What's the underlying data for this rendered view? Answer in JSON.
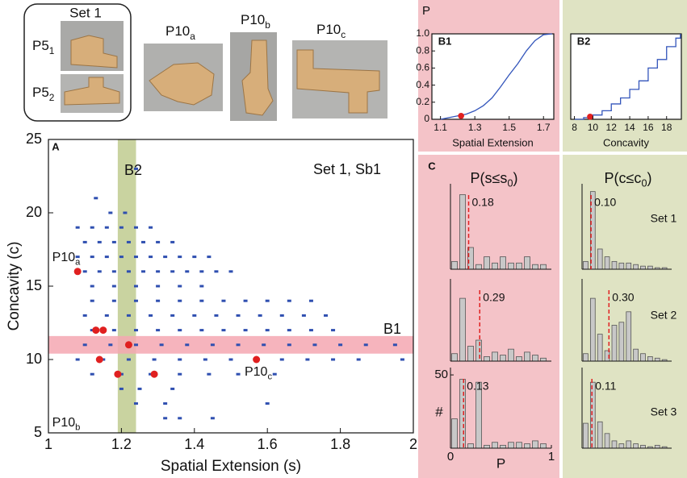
{
  "photos": {
    "group_title": "Set 1",
    "labels": [
      {
        "text": "P5",
        "sub": "1"
      },
      {
        "text": "P5",
        "sub": "2"
      },
      {
        "text": "P10",
        "sub": "a"
      },
      {
        "text": "P10",
        "sub": "b"
      },
      {
        "text": "P10",
        "sub": "c"
      }
    ]
  },
  "panel_c": {
    "label": "C",
    "columns": [
      {
        "text": "P(s≤s",
        "sub": "0",
        "tail": ")"
      },
      {
        "text": "P(c≤c",
        "sub": "0",
        "tail": ")"
      }
    ],
    "set_labels": [
      "Set 1",
      "Set 2",
      "Set 3"
    ]
  },
  "chart_data": [
    {
      "type": "scatter",
      "panel": "A",
      "title": "Set 1, Sb1",
      "xlabel": "Spatial Extension (s)",
      "ylabel": "Concavity (c)",
      "xlim": [
        1,
        2
      ],
      "ylim": [
        5,
        25
      ],
      "xticks": [
        1,
        1.2,
        1.4,
        1.6,
        1.8,
        2
      ],
      "yticks": [
        5,
        10,
        15,
        20,
        25
      ],
      "color": "#2f4fb0",
      "highlight_color": "#e02020",
      "band_y": [
        10.4,
        11.6
      ],
      "band_y_label": "B1",
      "band_y_color": "#f4a7b2",
      "band_x": [
        1.19,
        1.24
      ],
      "band_x_label": "B2",
      "band_x_color": "#c9d3a0",
      "x": [
        1.24,
        1.13,
        1.17,
        1.21,
        1.08,
        1.12,
        1.16,
        1.2,
        1.24,
        1.28,
        1.1,
        1.14,
        1.18,
        1.22,
        1.26,
        1.3,
        1.34,
        1.08,
        1.12,
        1.16,
        1.2,
        1.24,
        1.28,
        1.32,
        1.36,
        1.4,
        1.44,
        1.1,
        1.14,
        1.18,
        1.22,
        1.26,
        1.3,
        1.34,
        1.38,
        1.42,
        1.46,
        1.5,
        1.12,
        1.18,
        1.24,
        1.3,
        1.36,
        1.42,
        1.12,
        1.18,
        1.24,
        1.3,
        1.36,
        1.42,
        1.48,
        1.54,
        1.6,
        1.66,
        1.72,
        1.1,
        1.16,
        1.22,
        1.28,
        1.34,
        1.4,
        1.46,
        1.52,
        1.58,
        1.64,
        1.7,
        1.76,
        1.12,
        1.18,
        1.24,
        1.3,
        1.36,
        1.42,
        1.48,
        1.54,
        1.6,
        1.66,
        1.72,
        1.78,
        1.1,
        1.17,
        1.24,
        1.31,
        1.38,
        1.45,
        1.52,
        1.59,
        1.66,
        1.73,
        1.8,
        1.87,
        1.95,
        1.08,
        1.15,
        1.22,
        1.29,
        1.36,
        1.43,
        1.5,
        1.57,
        1.64,
        1.71,
        1.78,
        1.85,
        1.97,
        1.12,
        1.2,
        1.28,
        1.36,
        1.44,
        1.52,
        1.62,
        1.2,
        1.25,
        1.34,
        1.24,
        1.32,
        1.6,
        1.32,
        1.36,
        1.45
      ],
      "values": [
        23,
        21,
        20,
        20,
        19,
        19,
        19,
        19,
        19,
        19,
        18,
        18,
        18,
        18,
        18,
        18,
        18,
        17,
        17,
        17,
        17,
        17,
        17,
        17,
        17,
        17,
        17,
        16,
        16,
        16,
        16,
        16,
        16,
        16,
        16,
        16,
        16,
        16,
        15,
        15,
        15,
        15,
        15,
        15,
        14,
        14,
        14,
        14,
        14,
        14,
        14,
        14,
        14,
        14,
        14,
        13,
        13,
        13,
        13,
        13,
        13,
        13,
        13,
        13,
        13,
        13,
        13,
        12,
        12,
        12,
        12,
        12,
        12,
        12,
        12,
        12,
        12,
        12,
        12,
        11,
        11,
        11,
        11,
        11,
        11,
        11,
        11,
        11,
        11,
        11,
        11,
        11,
        10,
        10,
        10,
        10,
        10,
        10,
        10,
        10,
        10,
        10,
        10,
        10,
        10,
        9,
        9,
        9,
        9,
        9,
        9,
        9,
        8,
        8,
        8,
        7,
        7,
        7,
        6,
        6,
        6
      ],
      "highlight_x": [
        1.08,
        1.13,
        1.15,
        1.14,
        1.22,
        1.19,
        1.29,
        1.57
      ],
      "highlight_values": [
        16,
        12,
        12,
        10,
        11,
        9,
        9,
        10
      ],
      "annotations": [
        {
          "text": "P10",
          "sub": "a"
        },
        {
          "text": "P10",
          "sub": "b"
        },
        {
          "text": "P10",
          "sub": "c"
        }
      ]
    },
    {
      "type": "line",
      "panel": "B1",
      "ylabel": "P",
      "xlabel": "Spatial Extension",
      "step": false,
      "color": "#3355bb",
      "xlim": [
        1.05,
        1.76
      ],
      "ylim": [
        0,
        1
      ],
      "xticks": [
        1.1,
        1.3,
        1.5,
        1.7
      ],
      "yticks": [
        0,
        0.2,
        0.4,
        0.6,
        0.8,
        {
          "value": 1,
          "label": "1.0"
        }
      ],
      "x": [
        1.1,
        1.15,
        1.2,
        1.25,
        1.3,
        1.35,
        1.4,
        1.45,
        1.5,
        1.55,
        1.6,
        1.65,
        1.7,
        1.75
      ],
      "values": [
        0,
        0.02,
        0.04,
        0.06,
        0.1,
        0.16,
        0.25,
        0.38,
        0.52,
        0.65,
        0.8,
        0.92,
        0.99,
        1
      ],
      "marker_color": "#e02020",
      "marker_x": 1.22,
      "marker_y": 0.04
    },
    {
      "type": "line",
      "panel": "B2",
      "xlabel": "Concavity",
      "step": true,
      "color": "#3355bb",
      "xlim": [
        7.6,
        19.6
      ],
      "ylim": [
        0,
        1
      ],
      "xticks": [
        8,
        10,
        12,
        14,
        16,
        18
      ],
      "x": [
        8,
        9,
        10,
        11,
        12,
        13,
        14,
        15,
        16,
        17,
        18,
        19,
        19.5
      ],
      "values": [
        0,
        0.02,
        0.05,
        0.1,
        0.18,
        0.25,
        0.35,
        0.45,
        0.6,
        0.7,
        0.85,
        0.95,
        1
      ],
      "marker_color": "#e02020",
      "marker_x": 9.7,
      "marker_y": 0.03
    },
    {
      "type": "histogram",
      "color": "#c8c8c8",
      "threshold": 0.18,
      "threshold_color": "#e02020",
      "xlim": [
        0,
        1
      ],
      "ylim": [
        0,
        55
      ],
      "bins": [
        0,
        0.08,
        0.16,
        0.24,
        0.32,
        0.4,
        0.48,
        0.56,
        0.64,
        0.72,
        0.8,
        0.88,
        0.96
      ],
      "values": [
        5,
        48,
        14,
        3,
        8,
        4,
        8,
        4,
        4,
        8,
        3,
        3
      ]
    },
    {
      "type": "histogram",
      "color": "#c8c8c8",
      "threshold": 0.29,
      "threshold_color": "#e02020",
      "xlim": [
        0,
        1
      ],
      "ylim": [
        0,
        55
      ],
      "bins": [
        0,
        0.08,
        0.16,
        0.24,
        0.32,
        0.4,
        0.48,
        0.56,
        0.64,
        0.72,
        0.8,
        0.88,
        0.96
      ],
      "values": [
        5,
        42,
        10,
        14,
        3,
        6,
        4,
        8,
        3,
        6,
        4,
        2
      ]
    },
    {
      "type": "histogram",
      "color": "#c8c8c8",
      "threshold": 0.13,
      "threshold_color": "#e02020",
      "xlim": [
        0,
        1
      ],
      "ylim": [
        0,
        55
      ],
      "xticks": [
        0,
        1
      ],
      "xlabel": "P",
      "yticks": [
        50
      ],
      "ylabel": "#",
      "bins": [
        0,
        0.08,
        0.16,
        0.24,
        0.32,
        0.4,
        0.48,
        0.56,
        0.64,
        0.72,
        0.8,
        0.88,
        0.96
      ],
      "values": [
        20,
        47,
        3,
        45,
        2,
        4,
        2,
        4,
        4,
        3,
        5,
        3
      ]
    },
    {
      "type": "histogram",
      "color": "#c8c8c8",
      "threshold": 0.1,
      "threshold_label": "0.10",
      "threshold_color": "#e02020",
      "xlim": [
        0,
        1
      ],
      "ylim": [
        0,
        55
      ],
      "bins": [
        0,
        0.08,
        0.16,
        0.24,
        0.32,
        0.4,
        0.48,
        0.56,
        0.64,
        0.72,
        0.8,
        0.88,
        0.96
      ],
      "values": [
        5,
        50,
        13,
        8,
        5,
        4,
        4,
        3,
        2,
        2,
        1,
        1
      ]
    },
    {
      "type": "histogram",
      "color": "#c8c8c8",
      "threshold": 0.3,
      "threshold_label": "0.30",
      "threshold_color": "#e02020",
      "xlim": [
        0,
        1
      ],
      "ylim": [
        0,
        55
      ],
      "bins": [
        0,
        0.08,
        0.16,
        0.24,
        0.32,
        0.4,
        0.48,
        0.56,
        0.64,
        0.72,
        0.8,
        0.88,
        0.96
      ],
      "values": [
        5,
        42,
        18,
        7,
        24,
        26,
        33,
        8,
        5,
        3,
        2,
        1
      ]
    },
    {
      "type": "histogram",
      "color": "#c8c8c8",
      "threshold": 0.11,
      "threshold_color": "#e02020",
      "xlim": [
        0,
        1
      ],
      "ylim": [
        0,
        55
      ],
      "bins": [
        0,
        0.08,
        0.16,
        0.24,
        0.32,
        0.4,
        0.48,
        0.56,
        0.64,
        0.72,
        0.8,
        0.88,
        0.96
      ],
      "values": [
        17,
        45,
        18,
        10,
        5,
        3,
        5,
        3,
        2,
        1,
        2,
        1
      ]
    }
  ]
}
